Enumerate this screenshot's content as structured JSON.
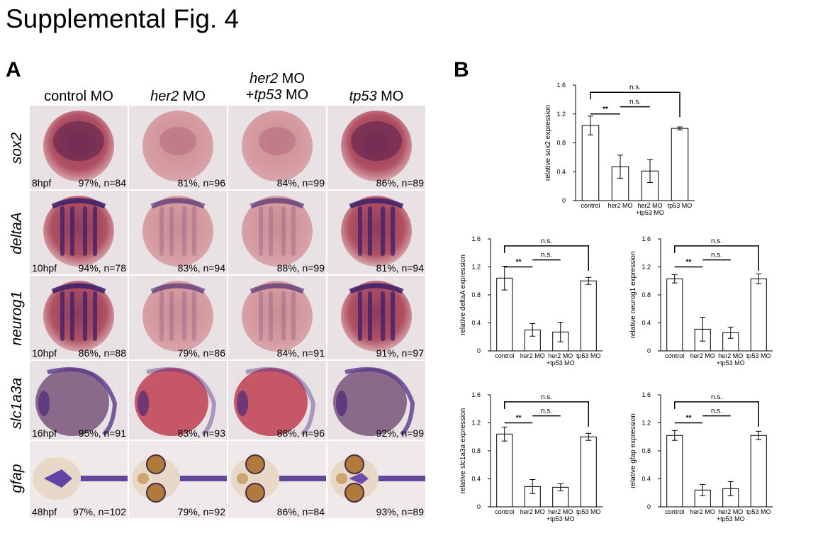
{
  "figure": {
    "title": "Supplemental Fig. 4",
    "panel_a": "A",
    "panel_b": "B"
  },
  "panel_a": {
    "columns": [
      {
        "line1": "control MO",
        "line2": "",
        "italic_part": ""
      },
      {
        "line1": "her2 MO",
        "line2": "",
        "italic_part": "her2"
      },
      {
        "line1": "her2 MO",
        "line2": "+tp53 MO",
        "italic_part": "her2"
      },
      {
        "line1": "tp53 MO",
        "line2": "",
        "italic_part": "tp53"
      }
    ],
    "col_headers": {
      "c0": "control MO",
      "c1_it": "her2",
      "c1_rest": " MO",
      "c2_l1_it": "her2",
      "c2_l1_rest": " MO",
      "c2_l2_pre": "+",
      "c2_l2_it": "tp53",
      "c2_l2_rest": " MO",
      "c3_it": "tp53",
      "c3_rest": " MO"
    },
    "rows": [
      {
        "gene": "sox2",
        "stage": "8hpf",
        "stats": [
          "97%, n=84",
          "81%, n=96",
          "84%, n=99",
          "86%, n=89"
        ]
      },
      {
        "gene": "deltaA",
        "stage": "10hpf",
        "stats": [
          "94%, n=78",
          "83%, n=94",
          "88%, n=99",
          "81%, n=94"
        ]
      },
      {
        "gene": "neurog1",
        "stage": "10hpf",
        "stats": [
          "86%, n=88",
          "79%, n=86",
          "84%, n=91",
          "91%, n=97"
        ]
      },
      {
        "gene": "slc1a3a",
        "stage": "16hpf",
        "stats": [
          "95%, n=91",
          "83%, n=93",
          "88%, n=96",
          "92%, n=99"
        ]
      },
      {
        "gene": "gfap",
        "stage": "48hpf",
        "stats": [
          "97%, n=102",
          "79%, n=92",
          "86%, n=84",
          "93%, n=89"
        ]
      }
    ]
  },
  "chart_data": [
    {
      "type": "bar",
      "categories": [
        "control",
        "her2 MO",
        "her2 MO\n+tp53 MO",
        "tp53 MO"
      ],
      "values": [
        1.04,
        0.47,
        0.41,
        1.0
      ],
      "errors": [
        0.13,
        0.16,
        0.16,
        0.02
      ],
      "ylabel": "relative sox2 expression",
      "ylim": [
        0,
        1.6
      ],
      "yticks": [
        0,
        0.4,
        0.8,
        1.2,
        1.6
      ],
      "annotations": [
        {
          "from": 0,
          "to": 3,
          "label": "n.s."
        },
        {
          "from": 1,
          "to": 2,
          "label": "n.s."
        },
        {
          "from": 0,
          "to": 1,
          "label": "**"
        }
      ]
    },
    {
      "type": "bar",
      "categories": [
        "control",
        "her2 MO",
        "her2 MO\n+tp53 MO",
        "tp53 MO"
      ],
      "values": [
        1.04,
        0.3,
        0.27,
        1.0
      ],
      "errors": [
        0.17,
        0.09,
        0.14,
        0.05
      ],
      "ylabel": "relative deltaA expression",
      "ylim": [
        0,
        1.6
      ],
      "yticks": [
        0,
        0.4,
        0.8,
        1.2,
        1.6
      ],
      "annotations": [
        {
          "from": 0,
          "to": 3,
          "label": "n.s."
        },
        {
          "from": 1,
          "to": 2,
          "label": "n.s."
        },
        {
          "from": 0,
          "to": 1,
          "label": "**"
        }
      ]
    },
    {
      "type": "bar",
      "categories": [
        "control",
        "her2 MO",
        "her2 MO\n+tp53 MO",
        "tp53 MO"
      ],
      "values": [
        1.03,
        0.31,
        0.26,
        1.03
      ],
      "errors": [
        0.06,
        0.17,
        0.08,
        0.07
      ],
      "ylabel": "relative neurog1 expression",
      "ylim": [
        0,
        1.6
      ],
      "yticks": [
        0,
        0.4,
        0.8,
        1.2,
        1.6
      ],
      "annotations": [
        {
          "from": 0,
          "to": 3,
          "label": "n.s."
        },
        {
          "from": 1,
          "to": 2,
          "label": "n.s."
        },
        {
          "from": 0,
          "to": 1,
          "label": "**"
        }
      ]
    },
    {
      "type": "bar",
      "categories": [
        "control",
        "her2 MO",
        "her2 MO\n+tp53 MO",
        "tp53 MO"
      ],
      "values": [
        1.04,
        0.29,
        0.28,
        1.0
      ],
      "errors": [
        0.1,
        0.1,
        0.05,
        0.05
      ],
      "ylabel": "relative slc1a3a expression",
      "ylim": [
        0,
        1.6
      ],
      "yticks": [
        0,
        0.4,
        0.8,
        1.2,
        1.6
      ],
      "annotations": [
        {
          "from": 0,
          "to": 3,
          "label": "n.s."
        },
        {
          "from": 1,
          "to": 2,
          "label": "n.s."
        },
        {
          "from": 0,
          "to": 1,
          "label": "**"
        }
      ]
    },
    {
      "type": "bar",
      "categories": [
        "control",
        "her2 MO",
        "her2 MO\n+tp53 MO",
        "tp53 MO"
      ],
      "values": [
        1.02,
        0.24,
        0.26,
        1.02
      ],
      "errors": [
        0.07,
        0.08,
        0.1,
        0.06
      ],
      "ylabel": "relative gfap expression",
      "ylim": [
        0,
        1.6
      ],
      "yticks": [
        0,
        0.4,
        0.8,
        1.2,
        1.6
      ],
      "annotations": [
        {
          "from": 0,
          "to": 3,
          "label": "n.s."
        },
        {
          "from": 1,
          "to": 2,
          "label": "n.s."
        },
        {
          "from": 0,
          "to": 1,
          "label": "**"
        }
      ]
    }
  ]
}
